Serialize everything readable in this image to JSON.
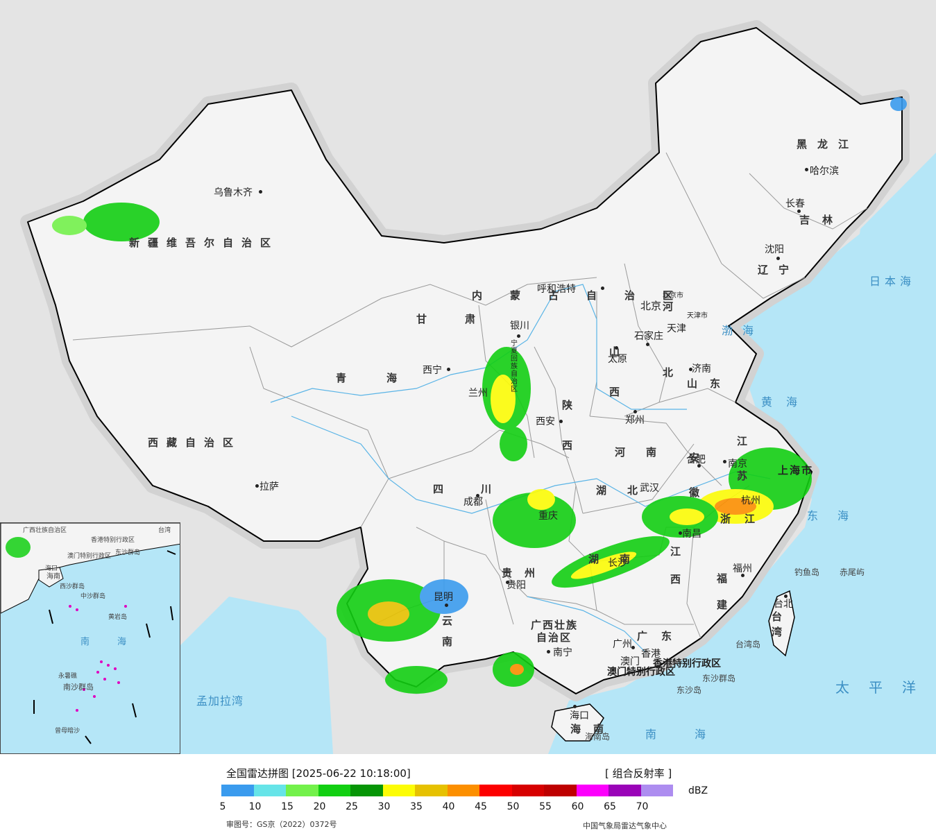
{
  "map": {
    "colors": {
      "sea": "#b5e6f7",
      "land": "#f4f4f4",
      "foreign_land": "#e4e4e4",
      "border": "#000000",
      "province_border": "#9a9a9a",
      "river": "#5ab4e6"
    },
    "cities": [
      {
        "name": "乌鲁木齐"
      },
      {
        "name": "西宁"
      },
      {
        "name": "拉萨"
      },
      {
        "name": "成都"
      },
      {
        "name": "兰州"
      },
      {
        "name": "银川"
      },
      {
        "name": "呼和浩特"
      },
      {
        "name": "北京"
      },
      {
        "name": "北京市"
      },
      {
        "name": "天津"
      },
      {
        "name": "天津市"
      },
      {
        "name": "石家庄"
      },
      {
        "name": "太原"
      },
      {
        "name": "济南"
      },
      {
        "name": "郑州"
      },
      {
        "name": "西安"
      },
      {
        "name": "合肥"
      },
      {
        "name": "南京"
      },
      {
        "name": "上海市"
      },
      {
        "name": "杭州"
      },
      {
        "name": "武汉"
      },
      {
        "name": "南昌"
      },
      {
        "name": "长沙"
      },
      {
        "name": "重庆"
      },
      {
        "name": "贵阳"
      },
      {
        "name": "昆明"
      },
      {
        "name": "南宁"
      },
      {
        "name": "广州"
      },
      {
        "name": "香港"
      },
      {
        "name": "澳门"
      },
      {
        "name": "福州"
      },
      {
        "name": "台北"
      },
      {
        "name": "海口"
      },
      {
        "name": "沈阳"
      },
      {
        "name": "长春"
      },
      {
        "name": "哈尔滨"
      }
    ],
    "provinces": [
      {
        "name": "新疆维吾尔自治区"
      },
      {
        "name": "西藏自治区"
      },
      {
        "name": "青海"
      },
      {
        "name": "甘肃"
      },
      {
        "name": "四川"
      },
      {
        "name": "陕西"
      },
      {
        "name": "山西"
      },
      {
        "name": "河北"
      },
      {
        "name": "河南"
      },
      {
        "name": "湖北"
      },
      {
        "name": "湖南"
      },
      {
        "name": "安徽"
      },
      {
        "name": "江苏"
      },
      {
        "name": "浙江"
      },
      {
        "name": "江西"
      },
      {
        "name": "福建"
      },
      {
        "name": "广东"
      },
      {
        "name": "广西壮族"
      },
      {
        "name": "自治区"
      },
      {
        "name": "贵州"
      },
      {
        "name": "云南"
      },
      {
        "name": "山东"
      },
      {
        "name": "辽宁"
      },
      {
        "name": "吉林"
      },
      {
        "name": "黑龙江"
      },
      {
        "name": "海南"
      },
      {
        "name": "台湾"
      },
      {
        "name": "内蒙古自治区"
      },
      {
        "name": "宁夏回族自治区"
      },
      {
        "name": "香港特别行政区"
      },
      {
        "name": "澳门特别行政区"
      }
    ],
    "seas": [
      {
        "name": "日本海"
      },
      {
        "name": "渤海"
      },
      {
        "name": "黄海"
      },
      {
        "name": "东海"
      },
      {
        "name": "太平洋"
      },
      {
        "name": "南海"
      },
      {
        "name": "孟加拉湾"
      }
    ],
    "islands": [
      {
        "name": "钓鱼岛"
      },
      {
        "name": "赤尾屿"
      },
      {
        "name": "台湾岛"
      },
      {
        "name": "东沙群岛"
      },
      {
        "name": "东沙岛"
      },
      {
        "name": "海南岛"
      }
    ],
    "inset": {
      "labels": [
        "南",
        "海",
        "东沙群岛",
        "中沙群岛",
        "黄岩岛",
        "西沙群岛",
        "永暑礁",
        "南沙群岛",
        "曾母暗沙",
        "海口",
        "海南",
        "台湾",
        "香港特别行政区",
        "澳门特别行政区",
        "广西壮族自治区"
      ]
    }
  },
  "legend": {
    "title": "全国雷达拼图 [2025-06-22 10:18:00]",
    "product": "[ 组合反射率 ]",
    "unit": "dBZ",
    "colors": [
      "#3a9bee",
      "#66e4e8",
      "#73f14b",
      "#12cf12",
      "#069506",
      "#fcfc06",
      "#e6c101",
      "#fc8f00",
      "#fc0000",
      "#d70000",
      "#be0000",
      "#fc00fc",
      "#9a04b8",
      "#ad8df0"
    ],
    "ticks": [
      "5",
      "10",
      "15",
      "20",
      "25",
      "30",
      "35",
      "40",
      "45",
      "50",
      "55",
      "60",
      "65",
      "70"
    ],
    "approval": "审图号：GS京（2022）0372号",
    "source": "中国气象局雷达气象中心"
  }
}
